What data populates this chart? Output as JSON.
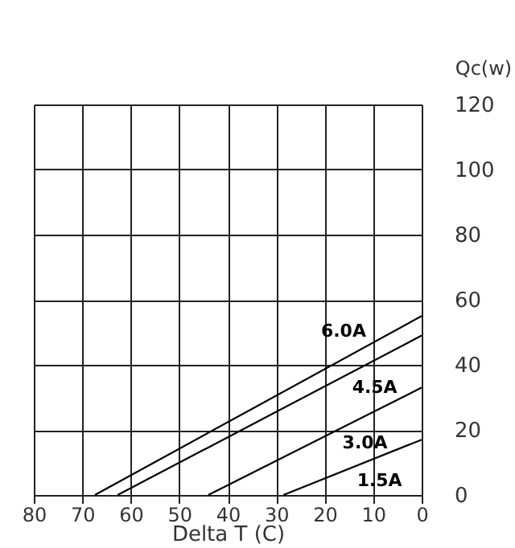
{
  "chart_data": {
    "type": "line",
    "xlabel": "Delta T (C)",
    "ylabel": "Qc(w)",
    "xlim": [
      80,
      0
    ],
    "xticks": [
      80,
      70,
      60,
      50,
      40,
      30,
      20,
      10,
      0
    ],
    "ylim": [
      0,
      120
    ],
    "yticks": [
      0,
      20,
      40,
      60,
      80,
      100,
      120
    ],
    "grid": true,
    "marker": "none",
    "line_style": "solid",
    "series": [
      {
        "name": "6.0A",
        "color": "#000000",
        "x": [
          67.4,
          0
        ],
        "values": [
          0,
          55
        ]
      },
      {
        "name": "4.5A",
        "color": "#000000",
        "x": [
          62.7,
          0
        ],
        "values": [
          0,
          49
        ]
      },
      {
        "name": "3.0A",
        "color": "#000000",
        "x": [
          44,
          0
        ],
        "values": [
          0,
          33
        ]
      },
      {
        "name": "1.5A",
        "color": "#000000",
        "x": [
          28.5,
          0
        ],
        "values": [
          0,
          17
        ]
      }
    ]
  }
}
